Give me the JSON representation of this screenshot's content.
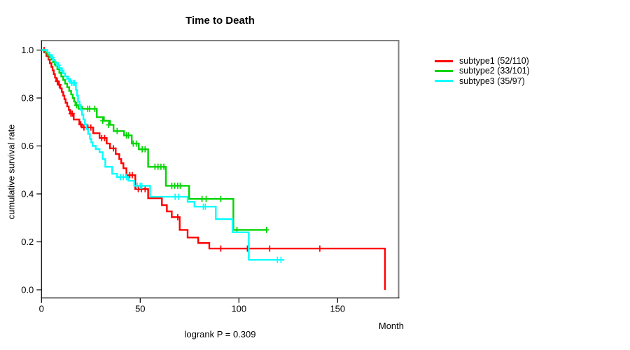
{
  "title": "Time to Death",
  "y_axis": {
    "label": "cumulative survival rate",
    "ticks": [
      "0.0",
      "0.2",
      "0.4",
      "0.6",
      "0.8",
      "1.0"
    ],
    "tick_values": [
      0,
      0.2,
      0.4,
      0.6,
      0.8,
      1.0
    ]
  },
  "x_axis": {
    "label": "Month",
    "ticks": [
      "0",
      "50",
      "100",
      "150"
    ],
    "tick_values": [
      0,
      50,
      100,
      150
    ]
  },
  "footnote": "logrank P = 0.309",
  "legend": [
    {
      "label": "subtype1 (52/110)",
      "color": "#ff0000"
    },
    {
      "label": "subtype2 (33/101)",
      "color": "#00d500"
    },
    {
      "label": "subtype3 (35/97)",
      "color": "#00ffff"
    }
  ],
  "chart_data": {
    "type": "line",
    "variant": "kaplan-meier-step",
    "title": "Time to Death",
    "xlabel": "Month",
    "ylabel": "cumulative survival rate",
    "xlim": [
      0,
      181
    ],
    "ylim": [
      0.0,
      1.0
    ],
    "grid": false,
    "legend_position": "right-outside",
    "annotation": "logrank P = 0.309",
    "frame_colors": {
      "axis": "#000000",
      "box_top_right": "#808080"
    },
    "series": [
      {
        "name": "subtype1",
        "events": 52,
        "n": 110,
        "color": "#ff0000",
        "start": [
          0,
          1.0
        ],
        "steps": [
          [
            1.5,
            0.99
          ],
          [
            2.5,
            0.975
          ],
          [
            3.5,
            0.96
          ],
          [
            4.2,
            0.945
          ],
          [
            5,
            0.93
          ],
          [
            5.6,
            0.915
          ],
          [
            6.2,
            0.9
          ],
          [
            6.8,
            0.885
          ],
          [
            7.5,
            0.87
          ],
          [
            8.5,
            0.855
          ],
          [
            9.5,
            0.84
          ],
          [
            10.3,
            0.825
          ],
          [
            11,
            0.81
          ],
          [
            11.6,
            0.795
          ],
          [
            12.2,
            0.78
          ],
          [
            13,
            0.765
          ],
          [
            13.8,
            0.75
          ],
          [
            14.5,
            0.735
          ],
          [
            16.3,
            0.71
          ],
          [
            19.2,
            0.69
          ],
          [
            20.5,
            0.677
          ],
          [
            26.2,
            0.653
          ],
          [
            29.4,
            0.633
          ],
          [
            33,
            0.61
          ],
          [
            34.7,
            0.59
          ],
          [
            37.6,
            0.566
          ],
          [
            39.4,
            0.545
          ],
          [
            40.4,
            0.528
          ],
          [
            41.5,
            0.507
          ],
          [
            43,
            0.478
          ],
          [
            47.5,
            0.42
          ],
          [
            54,
            0.382
          ],
          [
            61,
            0.353
          ],
          [
            63.5,
            0.327
          ],
          [
            66,
            0.303
          ],
          [
            70,
            0.25
          ],
          [
            74,
            0.218
          ],
          [
            79.4,
            0.195
          ],
          [
            85,
            0.172
          ],
          [
            174,
            0.0
          ]
        ],
        "end_time": 174,
        "censors": [
          [
            1.3,
            1.0
          ],
          [
            8,
            0.87
          ],
          [
            9,
            0.855
          ],
          [
            14.9,
            0.735
          ],
          [
            15.6,
            0.735
          ],
          [
            19.9,
            0.69
          ],
          [
            21.5,
            0.677
          ],
          [
            23.5,
            0.677
          ],
          [
            25,
            0.677
          ],
          [
            30.5,
            0.633
          ],
          [
            32,
            0.633
          ],
          [
            36.5,
            0.59
          ],
          [
            44.7,
            0.478
          ],
          [
            46,
            0.478
          ],
          [
            49,
            0.42
          ],
          [
            50.6,
            0.42
          ],
          [
            52.5,
            0.42
          ],
          [
            69,
            0.303
          ],
          [
            90.8,
            0.172
          ],
          [
            104.3,
            0.172
          ],
          [
            115.6,
            0.172
          ],
          [
            141,
            0.172
          ]
        ]
      },
      {
        "name": "subtype2",
        "events": 33,
        "n": 101,
        "color": "#00d500",
        "start": [
          0,
          1.0
        ],
        "steps": [
          [
            2,
            0.99
          ],
          [
            3,
            0.98
          ],
          [
            4,
            0.97
          ],
          [
            5,
            0.96
          ],
          [
            6,
            0.95
          ],
          [
            7,
            0.935
          ],
          [
            8,
            0.92
          ],
          [
            9,
            0.905
          ],
          [
            10,
            0.89
          ],
          [
            11,
            0.875
          ],
          [
            12,
            0.86
          ],
          [
            13,
            0.845
          ],
          [
            14,
            0.83
          ],
          [
            15,
            0.815
          ],
          [
            15.8,
            0.8
          ],
          [
            16.5,
            0.785
          ],
          [
            17.2,
            0.77
          ],
          [
            18.8,
            0.755
          ],
          [
            28,
            0.72
          ],
          [
            31.6,
            0.705
          ],
          [
            34.7,
            0.688
          ],
          [
            36.5,
            0.662
          ],
          [
            41.8,
            0.644
          ],
          [
            45.7,
            0.61
          ],
          [
            49.3,
            0.586
          ],
          [
            54,
            0.513
          ],
          [
            63,
            0.434
          ],
          [
            74.8,
            0.379
          ],
          [
            97.2,
            0.25
          ]
        ],
        "end_time": 114.5,
        "censors": [
          [
            6.5,
            0.95
          ],
          [
            17.8,
            0.77
          ],
          [
            20.6,
            0.755
          ],
          [
            23.4,
            0.755
          ],
          [
            24.4,
            0.755
          ],
          [
            27,
            0.755
          ],
          [
            31,
            0.705
          ],
          [
            34,
            0.688
          ],
          [
            38.3,
            0.662
          ],
          [
            43,
            0.644
          ],
          [
            44,
            0.644
          ],
          [
            46.5,
            0.61
          ],
          [
            48,
            0.61
          ],
          [
            51,
            0.586
          ],
          [
            52.5,
            0.586
          ],
          [
            57.5,
            0.513
          ],
          [
            59,
            0.513
          ],
          [
            60.5,
            0.513
          ],
          [
            62,
            0.513
          ],
          [
            66,
            0.434
          ],
          [
            67.5,
            0.434
          ],
          [
            69,
            0.434
          ],
          [
            70.3,
            0.434
          ],
          [
            81.3,
            0.379
          ],
          [
            83.4,
            0.379
          ],
          [
            90.8,
            0.379
          ],
          [
            99,
            0.25
          ],
          [
            114,
            0.25
          ]
        ]
      },
      {
        "name": "subtype3",
        "events": 35,
        "n": 97,
        "color": "#00ffff",
        "start": [
          0,
          1.0
        ],
        "steps": [
          [
            3,
            0.99
          ],
          [
            4,
            0.98
          ],
          [
            5,
            0.969
          ],
          [
            6,
            0.958
          ],
          [
            7,
            0.947
          ],
          [
            8,
            0.936
          ],
          [
            9,
            0.925
          ],
          [
            10,
            0.914
          ],
          [
            11,
            0.903
          ],
          [
            12,
            0.89
          ],
          [
            13.1,
            0.88
          ],
          [
            14.5,
            0.863
          ],
          [
            17.4,
            0.834
          ],
          [
            18,
            0.81
          ],
          [
            18.5,
            0.785
          ],
          [
            19.3,
            0.77
          ],
          [
            19.9,
            0.75
          ],
          [
            20.5,
            0.73
          ],
          [
            21.2,
            0.71
          ],
          [
            22,
            0.69
          ],
          [
            22.8,
            0.67
          ],
          [
            23.6,
            0.65
          ],
          [
            24.5,
            0.63
          ],
          [
            25.2,
            0.615
          ],
          [
            25.9,
            0.6
          ],
          [
            27.5,
            0.587
          ],
          [
            29.4,
            0.574
          ],
          [
            31,
            0.545
          ],
          [
            32.3,
            0.513
          ],
          [
            35.8,
            0.484
          ],
          [
            38.3,
            0.47
          ],
          [
            44,
            0.455
          ],
          [
            47,
            0.434
          ],
          [
            55,
            0.388
          ],
          [
            74,
            0.367
          ],
          [
            77.5,
            0.347
          ],
          [
            88.3,
            0.295
          ],
          [
            96.8,
            0.24
          ],
          [
            105,
            0.125
          ]
        ],
        "end_time": 123,
        "censors": [
          [
            5.5,
            0.969
          ],
          [
            8.5,
            0.936
          ],
          [
            10.5,
            0.914
          ],
          [
            13.6,
            0.88
          ],
          [
            15.2,
            0.863
          ],
          [
            16,
            0.863
          ],
          [
            16.7,
            0.863
          ],
          [
            40,
            0.47
          ],
          [
            41.5,
            0.47
          ],
          [
            43,
            0.47
          ],
          [
            48.5,
            0.434
          ],
          [
            50,
            0.434
          ],
          [
            50.8,
            0.434
          ],
          [
            67.7,
            0.388
          ],
          [
            69.5,
            0.388
          ],
          [
            82,
            0.347
          ],
          [
            83,
            0.347
          ],
          [
            119.5,
            0.125
          ],
          [
            121.3,
            0.125
          ]
        ]
      }
    ]
  }
}
